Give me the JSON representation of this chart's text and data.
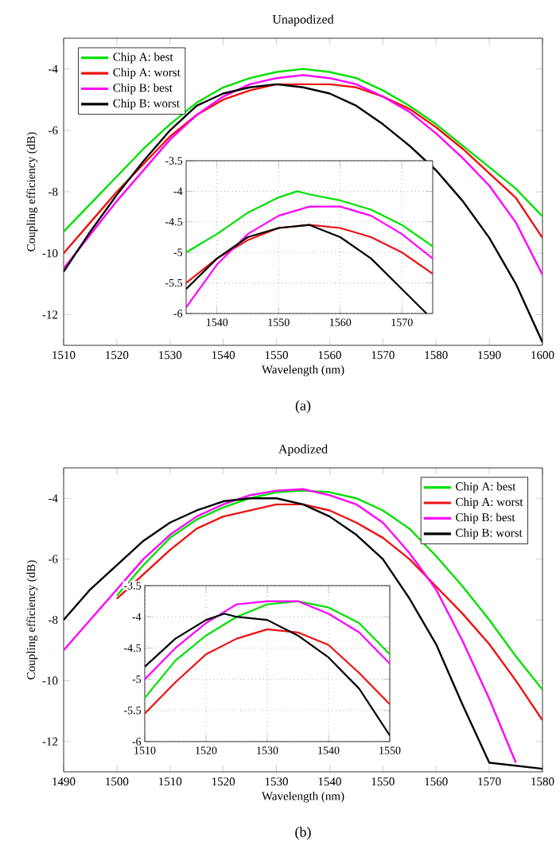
{
  "chart_data": [
    {
      "type": "line",
      "title": "Unapodized",
      "xlabel": "Wavelength (nm)",
      "ylabel": "Coupling efficiency (dB)",
      "annotations": [
        "(a)"
      ],
      "legend": "top left",
      "xlim": [
        1510,
        1600
      ],
      "ylim": [
        -13,
        -3
      ],
      "xticks": [
        1510,
        1520,
        1530,
        1540,
        1550,
        1560,
        1570,
        1580,
        1590,
        1600
      ],
      "yticks": [
        -12,
        -10,
        -8,
        -6,
        -4
      ],
      "series": [
        {
          "name": "Chip A: best",
          "color": "#00e000",
          "x": [
            1510,
            1515,
            1520,
            1525,
            1530,
            1535,
            1540,
            1545,
            1550,
            1555,
            1560,
            1565,
            1570,
            1575,
            1580,
            1585,
            1590,
            1595,
            1600
          ],
          "values": [
            -9.3,
            -8.4,
            -7.5,
            -6.6,
            -5.8,
            -5.1,
            -4.6,
            -4.3,
            -4.1,
            -4.0,
            -4.1,
            -4.3,
            -4.7,
            -5.2,
            -5.8,
            -6.5,
            -7.2,
            -7.9,
            -8.8
          ]
        },
        {
          "name": "Chip A: worst",
          "color": "#ee1111",
          "x": [
            1510,
            1515,
            1520,
            1525,
            1530,
            1535,
            1540,
            1545,
            1550,
            1555,
            1560,
            1565,
            1570,
            1575,
            1580,
            1585,
            1590,
            1595,
            1600
          ],
          "values": [
            -10.0,
            -9.0,
            -8.0,
            -7.1,
            -6.2,
            -5.5,
            -5.0,
            -4.7,
            -4.5,
            -4.5,
            -4.5,
            -4.6,
            -4.9,
            -5.3,
            -5.9,
            -6.6,
            -7.4,
            -8.2,
            -9.5
          ]
        },
        {
          "name": "Chip B: best",
          "color": "#ff00ff",
          "x": [
            1510,
            1515,
            1520,
            1525,
            1530,
            1535,
            1540,
            1545,
            1550,
            1555,
            1560,
            1565,
            1570,
            1575,
            1580,
            1585,
            1590,
            1595,
            1600
          ],
          "values": [
            -10.5,
            -9.4,
            -8.3,
            -7.3,
            -6.3,
            -5.5,
            -4.9,
            -4.5,
            -4.3,
            -4.2,
            -4.3,
            -4.5,
            -4.9,
            -5.4,
            -6.1,
            -6.9,
            -7.8,
            -9.0,
            -10.7
          ]
        },
        {
          "name": "Chip B: worst",
          "color": "#000000",
          "x": [
            1510,
            1515,
            1520,
            1525,
            1530,
            1535,
            1540,
            1545,
            1550,
            1555,
            1560,
            1565,
            1570,
            1575,
            1580,
            1585,
            1590,
            1595,
            1600
          ],
          "values": [
            -10.6,
            -9.3,
            -8.1,
            -7.0,
            -6.0,
            -5.2,
            -4.8,
            -4.6,
            -4.5,
            -4.6,
            -4.8,
            -5.2,
            -5.8,
            -6.5,
            -7.3,
            -8.3,
            -9.5,
            -11.0,
            -12.9
          ]
        }
      ]
    },
    {
      "type": "line",
      "grid": true,
      "xlim": [
        1535,
        1575
      ],
      "ylim": [
        -6,
        -3.5
      ],
      "xticks": [
        1540,
        1550,
        1560,
        1570
      ],
      "yticks": [
        -6,
        -5.5,
        -5,
        -4.5,
        -4,
        -3.5
      ],
      "series": [
        {
          "color": "#00e000",
          "x": [
            1535,
            1540,
            1545,
            1550,
            1553,
            1555,
            1560,
            1565,
            1570,
            1575
          ],
          "values": [
            -5.0,
            -4.7,
            -4.35,
            -4.1,
            -4.0,
            -4.05,
            -4.15,
            -4.3,
            -4.55,
            -4.9
          ]
        },
        {
          "color": "#ee1111",
          "x": [
            1535,
            1540,
            1545,
            1550,
            1555,
            1560,
            1565,
            1570,
            1575
          ],
          "values": [
            -5.5,
            -5.1,
            -4.8,
            -4.6,
            -4.55,
            -4.6,
            -4.75,
            -5.0,
            -5.35
          ]
        },
        {
          "color": "#ff00ff",
          "x": [
            1535,
            1540,
            1545,
            1550,
            1555,
            1560,
            1565,
            1570,
            1575
          ],
          "values": [
            -5.9,
            -5.2,
            -4.7,
            -4.4,
            -4.25,
            -4.25,
            -4.4,
            -4.7,
            -5.1
          ]
        },
        {
          "color": "#000000",
          "x": [
            1535,
            1540,
            1545,
            1550,
            1555,
            1560,
            1565,
            1570,
            1574
          ],
          "values": [
            -5.6,
            -5.1,
            -4.75,
            -4.6,
            -4.55,
            -4.75,
            -5.1,
            -5.6,
            -6.0
          ]
        }
      ]
    },
    {
      "type": "line",
      "title": "Apodized",
      "xlabel": "Wavelength (nm)",
      "ylabel": "Coupling efficiency (dB)",
      "annotations": [
        "(b)"
      ],
      "legend": "top right",
      "xlim": [
        1490,
        1580
      ],
      "ylim": [
        -13,
        -3
      ],
      "xticks": [
        1490,
        1500,
        1510,
        1520,
        1530,
        1540,
        1550,
        1560,
        1570,
        1580
      ],
      "yticks": [
        -12,
        -10,
        -8,
        -6,
        -4
      ],
      "series": [
        {
          "name": "Chip A: best",
          "color": "#00e000",
          "x": [
            1500,
            1505,
            1510,
            1515,
            1520,
            1525,
            1530,
            1535,
            1540,
            1545,
            1550,
            1555,
            1560,
            1565,
            1570,
            1575,
            1580
          ],
          "values": [
            -7.2,
            -6.2,
            -5.3,
            -4.7,
            -4.3,
            -4.0,
            -3.8,
            -3.75,
            -3.8,
            -4.0,
            -4.4,
            -5.0,
            -5.9,
            -6.9,
            -8.0,
            -9.2,
            -10.3
          ]
        },
        {
          "name": "Chip A: worst",
          "color": "#ee1111",
          "x": [
            1500,
            1505,
            1510,
            1515,
            1520,
            1525,
            1530,
            1535,
            1540,
            1545,
            1550,
            1555,
            1560,
            1565,
            1570,
            1575,
            1580
          ],
          "values": [
            -7.3,
            -6.5,
            -5.7,
            -5.0,
            -4.6,
            -4.4,
            -4.2,
            -4.2,
            -4.4,
            -4.8,
            -5.3,
            -6.0,
            -6.9,
            -7.8,
            -8.8,
            -10.0,
            -11.3
          ]
        },
        {
          "name": "Chip B: best",
          "color": "#ff00ff",
          "x": [
            1490,
            1495,
            1500,
            1505,
            1510,
            1515,
            1520,
            1525,
            1530,
            1535,
            1540,
            1545,
            1550,
            1555,
            1560,
            1565,
            1570,
            1575
          ],
          "values": [
            -9.0,
            -8.0,
            -7.0,
            -6.0,
            -5.2,
            -4.6,
            -4.2,
            -3.9,
            -3.75,
            -3.7,
            -3.9,
            -4.2,
            -4.8,
            -5.8,
            -7.0,
            -8.7,
            -10.6,
            -12.7
          ]
        },
        {
          "name": "Chip B: worst",
          "color": "#000000",
          "x": [
            1490,
            1495,
            1500,
            1505,
            1510,
            1515,
            1520,
            1525,
            1530,
            1535,
            1540,
            1545,
            1550,
            1555,
            1560,
            1565,
            1570,
            1575,
            1580
          ],
          "values": [
            -8.0,
            -7.0,
            -6.2,
            -5.4,
            -4.8,
            -4.4,
            -4.1,
            -4.0,
            -4.0,
            -4.2,
            -4.6,
            -5.2,
            -6.0,
            -7.3,
            -8.8,
            -10.8,
            -12.7,
            -12.8,
            -12.9
          ]
        }
      ]
    },
    {
      "type": "line",
      "grid": true,
      "xlim": [
        1510,
        1550
      ],
      "ylim": [
        -6,
        -3.5
      ],
      "xticks": [
        1510,
        1520,
        1530,
        1540,
        1550
      ],
      "yticks": [
        -6,
        -5.5,
        -5,
        -4.5,
        -4,
        -3.5
      ],
      "series": [
        {
          "color": "#00e000",
          "x": [
            1510,
            1515,
            1520,
            1525,
            1530,
            1535,
            1540,
            1545,
            1550
          ],
          "values": [
            -5.3,
            -4.7,
            -4.3,
            -4.0,
            -3.8,
            -3.75,
            -3.85,
            -4.1,
            -4.6
          ]
        },
        {
          "color": "#ee1111",
          "x": [
            1510,
            1515,
            1520,
            1525,
            1530,
            1535,
            1540,
            1545,
            1550
          ],
          "values": [
            -5.55,
            -5.05,
            -4.6,
            -4.35,
            -4.2,
            -4.25,
            -4.45,
            -4.9,
            -5.4
          ]
        },
        {
          "color": "#ff00ff",
          "x": [
            1510,
            1515,
            1520,
            1525,
            1530,
            1535,
            1540,
            1545,
            1550
          ],
          "values": [
            -5.0,
            -4.5,
            -4.1,
            -3.8,
            -3.75,
            -3.75,
            -3.95,
            -4.25,
            -4.75
          ]
        },
        {
          "color": "#000000",
          "x": [
            1510,
            1515,
            1520,
            1523,
            1525,
            1530,
            1535,
            1540,
            1545,
            1550
          ],
          "values": [
            -4.8,
            -4.35,
            -4.05,
            -3.95,
            -4.0,
            -4.05,
            -4.3,
            -4.65,
            -5.15,
            -5.9
          ]
        }
      ]
    }
  ]
}
